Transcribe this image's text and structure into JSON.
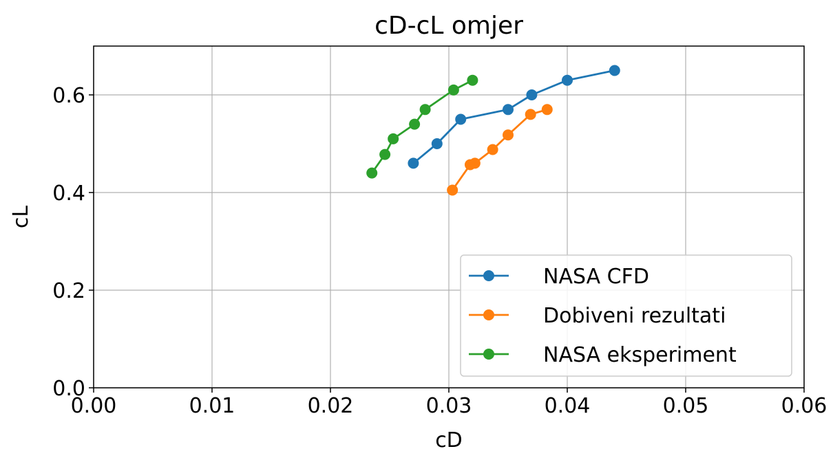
{
  "chart_data": {
    "type": "line",
    "title": "cD-cL omjer",
    "xlabel": "cD",
    "ylabel": "cL",
    "xlim": [
      0.0,
      0.06
    ],
    "ylim": [
      0.0,
      0.7
    ],
    "xticks": [
      "0.00",
      "0.01",
      "0.02",
      "0.03",
      "0.04",
      "0.05",
      "0.06"
    ],
    "yticks": [
      "0.0",
      "0.2",
      "0.4",
      "0.6"
    ],
    "xtick_values": [
      0.0,
      0.01,
      0.02,
      0.03,
      0.04,
      0.05,
      0.06
    ],
    "ytick_values": [
      0.0,
      0.2,
      0.4,
      0.6
    ],
    "grid": true,
    "legend_position": "lower-right",
    "series": [
      {
        "name": "NASA CFD",
        "color": "#1f77b4",
        "x": [
          0.027,
          0.029,
          0.031,
          0.035,
          0.037,
          0.04,
          0.044
        ],
        "y": [
          0.46,
          0.5,
          0.55,
          0.57,
          0.6,
          0.63,
          0.65
        ]
      },
      {
        "name": "Dobiveni rezultati",
        "color": "#ff7f0e",
        "x": [
          0.0303,
          0.0318,
          0.0322,
          0.0337,
          0.035,
          0.0369,
          0.0383
        ],
        "y": [
          0.405,
          0.457,
          0.46,
          0.488,
          0.518,
          0.56,
          0.57
        ]
      },
      {
        "name": "NASA eksperiment",
        "color": "#2ca02c",
        "x": [
          0.0235,
          0.0246,
          0.0253,
          0.0271,
          0.028,
          0.0304,
          0.032
        ],
        "y": [
          0.44,
          0.478,
          0.51,
          0.54,
          0.57,
          0.61,
          0.63
        ]
      }
    ]
  }
}
